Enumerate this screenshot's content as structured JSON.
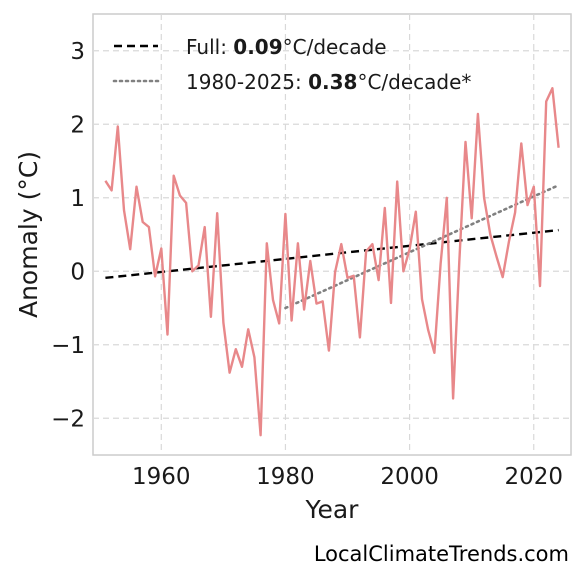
{
  "colors": {
    "series": "#e8888a",
    "full_trend": "#000000",
    "recent_trend": "#808080",
    "grid": "#d9d9d9",
    "frame": "#cccccc"
  },
  "watermark": "LocalClimateTrends.com",
  "legend": {
    "placement": "top-left",
    "full": {
      "prefix": "Full: ",
      "value": "0.09",
      "suffix": "°C/decade"
    },
    "recent": {
      "prefix": "1980-2025: ",
      "value": "0.38",
      "suffix": "°C/decade*"
    }
  },
  "chart_data": {
    "type": "line",
    "xlabel": "Year",
    "ylabel": "Anomaly (°C)",
    "xlim": [
      1949,
      2026
    ],
    "ylim": [
      -2.5,
      3.5
    ],
    "xticks": [
      1960,
      1980,
      2000,
      2020
    ],
    "yticks": [
      -2,
      -1,
      0,
      1,
      2,
      3
    ],
    "ytick_labels": [
      "−2",
      "−1",
      "0",
      "1",
      "2",
      "3"
    ],
    "grid": true,
    "series": [
      {
        "x": [
          1951,
          1952,
          1953,
          1954,
          1955,
          1956,
          1957,
          1958,
          1959,
          1960,
          1961,
          1962,
          1963,
          1964,
          1965,
          1966,
          1967,
          1968,
          1969,
          1970,
          1971,
          1972,
          1973,
          1974,
          1975,
          1976,
          1977,
          1978,
          1979,
          1980,
          1981,
          1982,
          1983,
          1984,
          1985,
          1986,
          1987,
          1988,
          1989,
          1990,
          1991,
          1992,
          1993,
          1994,
          1995,
          1996,
          1997,
          1998,
          1999,
          2000,
          2001,
          2002,
          2003,
          2004,
          2005,
          2006,
          2007,
          2008,
          2009,
          2010,
          2011,
          2012,
          2013,
          2014,
          2015,
          2016,
          2017,
          2018,
          2019,
          2020,
          2021,
          2022,
          2023,
          2024
        ],
        "y": [
          1.23,
          1.1,
          1.97,
          0.83,
          0.3,
          1.15,
          0.67,
          0.6,
          -0.07,
          0.31,
          -0.86,
          1.3,
          1.03,
          0.93,
          0.0,
          0.08,
          0.6,
          -0.62,
          0.79,
          -0.7,
          -1.38,
          -1.06,
          -1.3,
          -0.79,
          -1.17,
          -2.23,
          0.38,
          -0.39,
          -0.71,
          0.78,
          -0.67,
          0.38,
          -0.52,
          0.14,
          -0.44,
          -0.41,
          -1.08,
          -0.01,
          0.37,
          -0.09,
          -0.06,
          -0.9,
          0.27,
          0.37,
          -0.12,
          0.86,
          -0.43,
          1.22,
          0.0,
          0.3,
          0.81,
          -0.38,
          -0.8,
          -1.11,
          0.1,
          1.0,
          -1.73,
          0.13,
          1.76,
          0.72,
          2.14,
          1.0,
          0.5,
          0.2,
          -0.08,
          0.4,
          0.8,
          1.74,
          0.9,
          1.15,
          -0.2,
          2.31,
          2.49,
          1.68
        ]
      }
    ],
    "trends": [
      {
        "name": "full",
        "style": "dashed",
        "x": [
          1951,
          2024
        ],
        "y": [
          -0.09,
          0.56
        ]
      },
      {
        "name": "recent",
        "style": "dotted",
        "x": [
          1980,
          2024
        ],
        "y": [
          -0.5,
          1.17
        ]
      }
    ]
  }
}
